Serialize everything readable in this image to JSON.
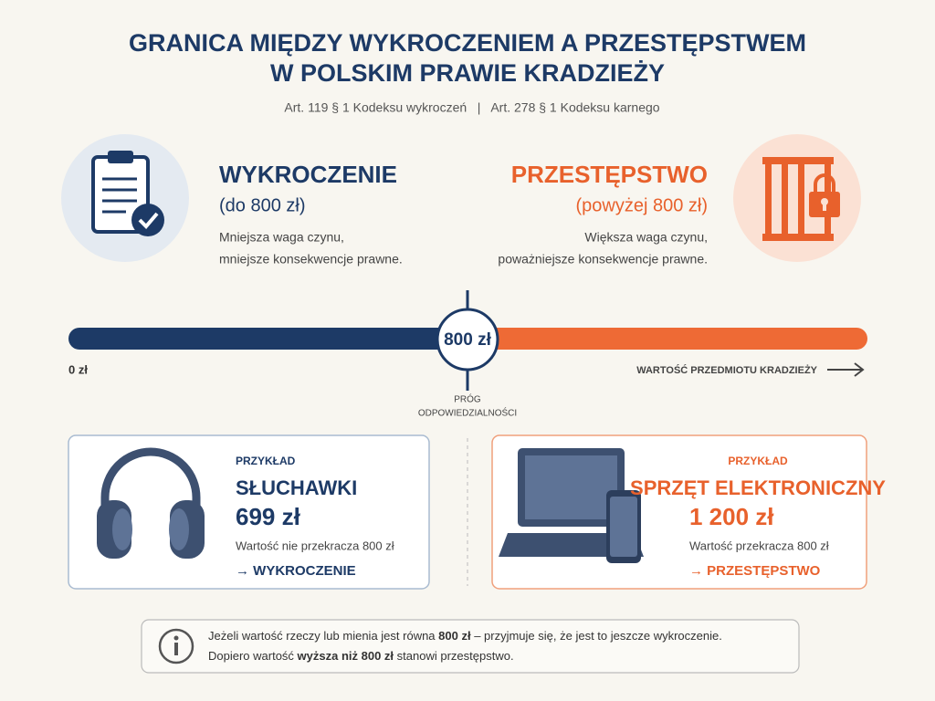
{
  "header": {
    "title_line1": "GRANICA MIĘDZY WYKROCZENIEM A PRZESTĘPSTWEM",
    "title_line2": "W POLSKIM PRAWIE KRADZIEŻY",
    "subtitle": "Art. 119 § 1 Kodeksu wykroczeń   |   Art. 278 § 1 Kodeksu karnego"
  },
  "left": {
    "title": "WYKROCZENIE",
    "range": "(do 800 zł)",
    "desc_line1": "Mniejsza waga czynu,",
    "desc_line2": "mniejsze konsekwencje prawne."
  },
  "right": {
    "title": "PRZESTĘPSTWO",
    "range": "(powyżej 800 zł)",
    "desc_line1": "Większa waga czynu,",
    "desc_line2": "poważniejsze konsekwencje prawne."
  },
  "scale": {
    "threshold": "800 zł",
    "start": "0 zł",
    "axis_label": "WARTOŚĆ PRZEDMIOTU KRADZIEŻY",
    "threshold_label_line1": "PRÓG",
    "threshold_label_line2": "ODPOWIEDZIALNOŚCI"
  },
  "examples": [
    {
      "tag": "PRZYKŁAD",
      "item": "SŁUCHAWKI",
      "price": "699 zł",
      "note": "Wartość nie przekracza 800 zł",
      "result": "→ WYKROCZENIE"
    },
    {
      "tag": "PRZYKŁAD",
      "item": "SPRZĘT ELEKTRONICZNY",
      "price": "1 200 zł",
      "note": "Wartość przekracza 800 zł",
      "result": "→ PRZESTĘPSTWO"
    }
  ],
  "note": {
    "line1_before": "Jeżeli wartość rzeczy lub mienia jest równa ",
    "line1_bold": "800 zł",
    "line1_after": " – przyjmuje się, że jest to jeszcze wykroczenie.",
    "line2_before": "Dopiero wartość ",
    "line2_bold": "wyższa niż 800 zł",
    "line2_after": " stanowi przestępstwo."
  }
}
